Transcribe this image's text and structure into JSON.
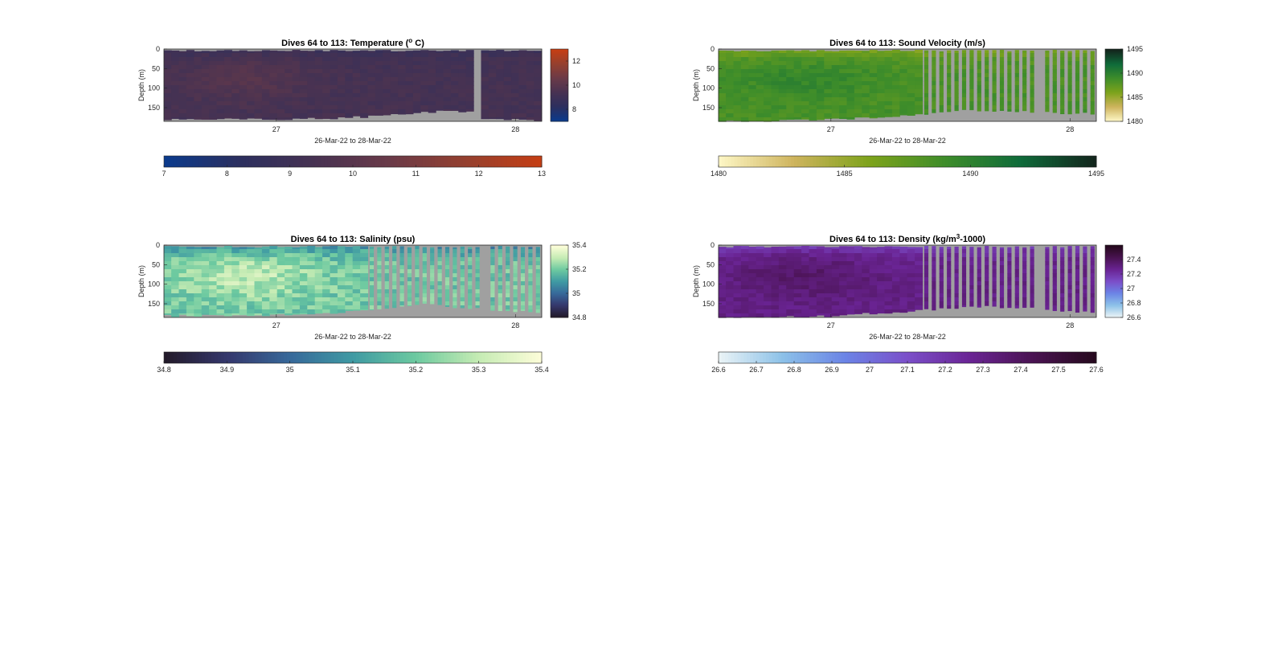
{
  "figure": {
    "background": "#ffffff",
    "nodata_color": "#a0a0a0"
  },
  "chart_data": [
    {
      "type": "heatmap",
      "id": "temperature",
      "title": "Dives 64 to 113: Temperature (",
      "title_sup": "o",
      "title_tail": " C)",
      "ylabel": "Depth (m)",
      "xlabel": "26-Mar-22 to 28-Mar-22",
      "x_ticks": [
        "27",
        "28"
      ],
      "x_tick_days": [
        27,
        28
      ],
      "x_range_days": [
        26.53,
        28.11
      ],
      "y_ticks": [
        "0",
        "50",
        "100",
        "150"
      ],
      "y_tick_values": [
        0,
        50,
        100,
        150
      ],
      "ylim": [
        0,
        185
      ],
      "y_reversed": true,
      "colormap": [
        "#0b3a8c",
        "#2c2f5e",
        "#473252",
        "#6a3a48",
        "#94402f",
        "#c43e14"
      ],
      "clim": [
        7,
        13
      ],
      "colorbar_ticks": [
        "8",
        "10",
        "12"
      ],
      "colorbar_tick_values": [
        8,
        10,
        12
      ],
      "h_colorbar_ticks": [
        "7",
        "8",
        "9",
        "10",
        "11",
        "12",
        "13"
      ],
      "h_colorbar_tick_values": [
        7,
        8,
        9,
        10,
        11,
        12,
        13
      ],
      "dives": 50,
      "sparse_after_day": null,
      "gap_days": [
        [
          27.82,
          27.85
        ]
      ],
      "max_depth_profile": [
        [
          26.53,
          180
        ],
        [
          27.0,
          178
        ],
        [
          27.3,
          175
        ],
        [
          27.5,
          168
        ],
        [
          27.7,
          158
        ],
        [
          27.82,
          162
        ],
        [
          27.85,
          180
        ],
        [
          28.11,
          180
        ]
      ],
      "value_model": {
        "surface": 8.8,
        "base": 9.3,
        "warm_patch": 9.9,
        "noise": 0.25
      }
    },
    {
      "type": "heatmap",
      "id": "sound_velocity",
      "title": "Dives 64 to 113: Sound Velocity (m/s)",
      "ylabel": "Depth (m)",
      "xlabel": "26-Mar-22 to 28-Mar-22",
      "x_ticks": [
        "27",
        "28"
      ],
      "x_tick_days": [
        27,
        28
      ],
      "x_range_days": [
        26.53,
        28.11
      ],
      "y_ticks": [
        "0",
        "50",
        "100",
        "150"
      ],
      "y_tick_values": [
        0,
        50,
        100,
        150
      ],
      "ylim": [
        0,
        185
      ],
      "y_reversed": true,
      "colormap": [
        "#fdf6c4",
        "#cdb35c",
        "#7da31b",
        "#3e8d2a",
        "#0f6b3a",
        "#13261d"
      ],
      "clim": [
        1480,
        1495
      ],
      "colorbar_ticks": [
        "1480",
        "1485",
        "1490",
        "1495"
      ],
      "colorbar_tick_values": [
        1480,
        1485,
        1490,
        1495
      ],
      "h_colorbar_ticks": [
        "1480",
        "1485",
        "1490",
        "1495"
      ],
      "h_colorbar_tick_values": [
        1480,
        1485,
        1490,
        1495
      ],
      "dives": 50,
      "sparse_after_day": 27.39,
      "gap_days": [
        [
          27.85,
          27.89
        ]
      ],
      "max_depth_profile": [
        [
          26.53,
          185
        ],
        [
          27.0,
          180
        ],
        [
          27.3,
          170
        ],
        [
          27.6,
          155
        ],
        [
          27.8,
          160
        ],
        [
          28.11,
          165
        ]
      ],
      "value_model": {
        "surface": 1486.0,
        "base": 1488.5,
        "warm_patch": 1489.6,
        "noise": 0.7
      }
    },
    {
      "type": "heatmap",
      "id": "salinity",
      "title": "Dives 64 to 113: Salinity (psu)",
      "ylabel": "Depth (m)",
      "xlabel": "26-Mar-22 to 28-Mar-22",
      "x_ticks": [
        "27",
        "28"
      ],
      "x_tick_days": [
        27,
        28
      ],
      "x_range_days": [
        26.53,
        28.11
      ],
      "y_ticks": [
        "0",
        "50",
        "100",
        "150"
      ],
      "y_tick_values": [
        0,
        50,
        100,
        150
      ],
      "ylim": [
        0,
        185
      ],
      "y_reversed": true,
      "colormap": [
        "#231a2a",
        "#35386d",
        "#37699a",
        "#3f9aa3",
        "#6cc9a0",
        "#c4ebb3",
        "#fcfdd8"
      ],
      "clim": [
        34.8,
        35.4
      ],
      "colorbar_ticks": [
        "34.8",
        "35",
        "35.2",
        "35.4"
      ],
      "colorbar_tick_values": [
        34.8,
        35.0,
        35.2,
        35.4
      ],
      "h_colorbar_ticks": [
        "34.8",
        "34.9",
        "35",
        "35.1",
        "35.2",
        "35.3",
        "35.4"
      ],
      "h_colorbar_tick_values": [
        34.8,
        34.9,
        35.0,
        35.1,
        35.2,
        35.3,
        35.4
      ],
      "dives": 50,
      "sparse_after_day": 27.39,
      "gap_days": [
        [
          27.85,
          27.89
        ]
      ],
      "max_depth_profile": [
        [
          26.53,
          180
        ],
        [
          27.0,
          178
        ],
        [
          27.3,
          170
        ],
        [
          27.6,
          150
        ],
        [
          27.8,
          160
        ],
        [
          28.11,
          172
        ]
      ],
      "value_model": {
        "surface": 35.05,
        "base": 35.2,
        "warm_patch": 35.3,
        "noise": 0.06
      }
    },
    {
      "type": "heatmap",
      "id": "density",
      "title": "Dives 64 to 113: Density (kg/m",
      "title_sup": "3",
      "title_tail": "-1000)",
      "ylabel": "Depth (m)",
      "xlabel": "26-Mar-22 to 28-Mar-22",
      "x_ticks": [
        "27",
        "28"
      ],
      "x_tick_days": [
        27,
        28
      ],
      "x_range_days": [
        26.53,
        28.11
      ],
      "y_ticks": [
        "0",
        "50",
        "100",
        "150"
      ],
      "y_tick_values": [
        0,
        50,
        100,
        150
      ],
      "ylim": [
        0,
        185
      ],
      "y_reversed": true,
      "colormap": [
        "#e9f3f6",
        "#8cc1e8",
        "#6b84e6",
        "#7b4fc9",
        "#6a2494",
        "#4a1352",
        "#26091e"
      ],
      "clim": [
        26.6,
        27.6
      ],
      "colorbar_ticks": [
        "26.6",
        "26.8",
        "27",
        "27.2",
        "27.4"
      ],
      "colorbar_tick_values": [
        26.6,
        26.8,
        27.0,
        27.2,
        27.4
      ],
      "h_colorbar_ticks": [
        "26.6",
        "26.7",
        "26.8",
        "26.9",
        "27",
        "27.1",
        "27.2",
        "27.3",
        "27.4",
        "27.5",
        "27.6"
      ],
      "h_colorbar_tick_values": [
        26.6,
        26.7,
        26.8,
        26.9,
        27.0,
        27.1,
        27.2,
        27.3,
        27.4,
        27.5,
        27.6
      ],
      "dives": 50,
      "sparse_after_day": 27.39,
      "gap_days": [
        [
          27.85,
          27.89
        ]
      ],
      "max_depth_profile": [
        [
          26.53,
          185
        ],
        [
          27.0,
          180
        ],
        [
          27.3,
          170
        ],
        [
          27.6,
          155
        ],
        [
          27.8,
          160
        ],
        [
          28.11,
          172
        ]
      ],
      "value_model": {
        "surface": 27.15,
        "base": 27.3,
        "warm_patch": 27.38,
        "noise": 0.04
      }
    }
  ]
}
